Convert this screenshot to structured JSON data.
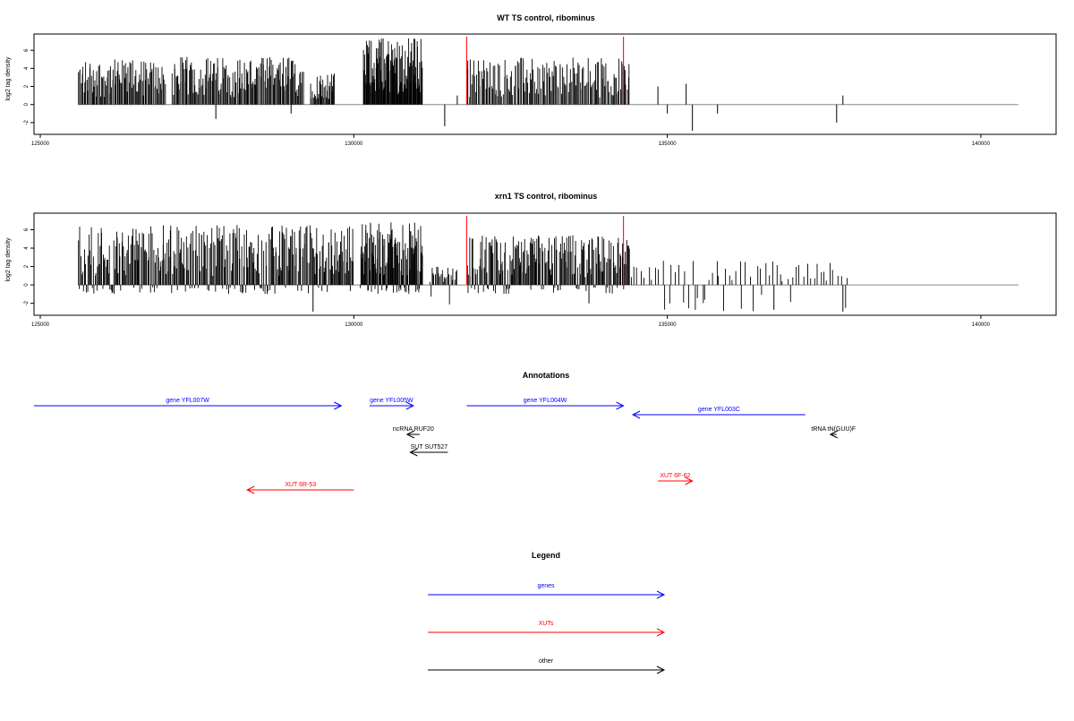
{
  "chart_data": [
    {
      "type": "bar",
      "title": "WT TS control, ribominus",
      "ylabel": "log2 tag density",
      "xlim": [
        124900,
        141200
      ],
      "ylim": [
        -3.3,
        7.8
      ],
      "xticks": [
        125000,
        130000,
        135000,
        140000
      ],
      "yticks": [
        -2,
        0,
        2,
        4,
        6
      ],
      "baseline": [
        125600,
        140600
      ],
      "grid": false,
      "highlight_color": "#ff2020",
      "highlights": [
        {
          "x": 131800,
          "y": 7.5
        },
        {
          "x": 134300,
          "y": 7.5
        }
      ],
      "series": [
        {
          "segments": [
            {
              "from": 125600,
              "to": 127000,
              "max": 5.0,
              "min": 0,
              "n": 95
            },
            {
              "from": 127100,
              "to": 129200,
              "max": 5.3,
              "min": 0,
              "n": 150
            },
            {
              "from": 129300,
              "to": 129700,
              "max": 3.5,
              "min": 0,
              "n": 30
            },
            {
              "from": 130150,
              "to": 131100,
              "max": 7.5,
              "min": 0,
              "n": 110
            },
            {
              "from": 131800,
              "to": 134400,
              "max": 5.2,
              "min": 0,
              "n": 150
            }
          ]
        },
        {
          "points": [
            {
              "x": 131650,
              "y": 1.0
            },
            {
              "x": 131450,
              "y": -2.4
            },
            {
              "x": 127800,
              "y": -1.6
            },
            {
              "x": 129000,
              "y": -1.0
            },
            {
              "x": 134850,
              "y": 2.0
            },
            {
              "x": 135000,
              "y": -1.0
            },
            {
              "x": 135300,
              "y": 2.3
            },
            {
              "x": 135400,
              "y": -2.9
            },
            {
              "x": 135800,
              "y": -1.0
            },
            {
              "x": 137700,
              "y": -2.0
            },
            {
              "x": 137800,
              "y": 1.0
            }
          ]
        }
      ]
    },
    {
      "type": "bar",
      "title": "xrn1 TS control, ribominus",
      "ylabel": "log2 tag density",
      "xlim": [
        124900,
        141200
      ],
      "ylim": [
        -3.3,
        7.8
      ],
      "xticks": [
        125000,
        130000,
        135000,
        140000
      ],
      "yticks": [
        -2,
        0,
        2,
        4,
        6
      ],
      "baseline": [
        125600,
        140600
      ],
      "grid": false,
      "highlight_color": "#ff2020",
      "highlights": [
        {
          "x": 131800,
          "y": 7.5
        },
        {
          "x": 134300,
          "y": 7.5
        }
      ],
      "series": [
        {
          "segments": [
            {
              "from": 125600,
              "to": 130000,
              "max": 6.5,
              "min": -1.0,
              "n": 330
            },
            {
              "from": 130100,
              "to": 131100,
              "max": 6.8,
              "min": -1.0,
              "n": 120
            },
            {
              "from": 131200,
              "to": 131650,
              "max": 2.0,
              "min": -2.8,
              "n": 25
            },
            {
              "from": 131800,
              "to": 134400,
              "max": 5.4,
              "min": -1.0,
              "n": 200
            },
            {
              "from": 134400,
              "to": 137900,
              "max": 2.7,
              "min": -2.9,
              "n": 65
            }
          ]
        },
        {
          "points": [
            {
              "x": 129350,
              "y": -2.9
            },
            {
              "x": 133750,
              "y": -2.0
            },
            {
              "x": 136700,
              "y": -2.7
            },
            {
              "x": 137800,
              "y": -2.9
            }
          ]
        }
      ]
    }
  ],
  "annotations": {
    "title": "Annotations",
    "xlim": [
      124900,
      141200
    ],
    "features": [
      {
        "label": "gene YFL007W",
        "start": 124900,
        "end": 129800,
        "row": 0,
        "color": "#0000ff"
      },
      {
        "label": "gene YFL005W",
        "start": 130250,
        "end": 130950,
        "row": 0,
        "color": "#0000ff"
      },
      {
        "label": "gene YFL004W",
        "start": 131800,
        "end": 134300,
        "row": 0,
        "color": "#0000ff"
      },
      {
        "label": "gene YFL003C",
        "start": 137200,
        "end": 134450,
        "row": 1,
        "color": "#0000ff"
      },
      {
        "label": "ncRNA RUF20",
        "start": 131050,
        "end": 130850,
        "row": 2,
        "color": "#000000"
      },
      {
        "label": "tRNA tN(GUU)F",
        "start": 137700,
        "end": 137600,
        "row": 2,
        "color": "#000000"
      },
      {
        "label": "SUT SUT527",
        "start": 131500,
        "end": 130900,
        "row": 3,
        "color": "#000000"
      },
      {
        "label": "XUT 6F-62",
        "start": 134850,
        "end": 135400,
        "row": 4,
        "color": "#ff0000"
      },
      {
        "label": "XUT 6R-53",
        "start": 130000,
        "end": 128300,
        "row": 5,
        "color": "#ff0000"
      }
    ]
  },
  "legend": {
    "title": "Legend",
    "entries": [
      {
        "label": "genes",
        "color": "#0000ff"
      },
      {
        "label": "XUTs",
        "color": "#ff0000"
      },
      {
        "label": "other",
        "color": "#000000"
      }
    ]
  }
}
